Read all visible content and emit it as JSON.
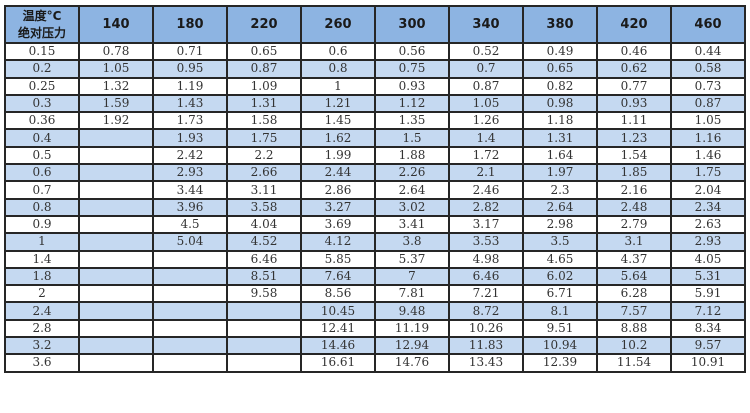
{
  "table": {
    "corner_top": "温度°C",
    "corner_bottom": "绝对压力",
    "temperatures": [
      "140",
      "180",
      "220",
      "260",
      "300",
      "340",
      "380",
      "420",
      "460"
    ],
    "colors": {
      "header": "#8db4e2",
      "alt_row": "#c5d9f1",
      "border": "#262626"
    },
    "rows": [
      {
        "pressure": "0.15",
        "values": [
          "0.78",
          "0.71",
          "0.65",
          "0.6",
          "0.56",
          "0.52",
          "0.49",
          "0.46",
          "0.44"
        ]
      },
      {
        "pressure": "0.2",
        "values": [
          "1.05",
          "0.95",
          "0.87",
          "0.8",
          "0.75",
          "0.7",
          "0.65",
          "0.62",
          "0.58"
        ]
      },
      {
        "pressure": "0.25",
        "values": [
          "1.32",
          "1.19",
          "1.09",
          "1",
          "0.93",
          "0.87",
          "0.82",
          "0.77",
          "0.73"
        ]
      },
      {
        "pressure": "0.3",
        "values": [
          "1.59",
          "1.43",
          "1.31",
          "1.21",
          "1.12",
          "1.05",
          "0.98",
          "0.93",
          "0.87"
        ]
      },
      {
        "pressure": "0.36",
        "values": [
          "1.92",
          "1.73",
          "1.58",
          "1.45",
          "1.35",
          "1.26",
          "1.18",
          "1.11",
          "1.05"
        ]
      },
      {
        "pressure": "0.4",
        "values": [
          "",
          "1.93",
          "1.75",
          "1.62",
          "1.5",
          "1.4",
          "1.31",
          "1.23",
          "1.16"
        ]
      },
      {
        "pressure": "0.5",
        "values": [
          "",
          "2.42",
          "2.2",
          "1.99",
          "1.88",
          "1.72",
          "1.64",
          "1.54",
          "1.46"
        ]
      },
      {
        "pressure": "0.6",
        "values": [
          "",
          "2.93",
          "2.66",
          "2.44",
          "2.26",
          "2.1",
          "1.97",
          "1.85",
          "1.75"
        ]
      },
      {
        "pressure": "0.7",
        "values": [
          "",
          "3.44",
          "3.11",
          "2.86",
          "2.64",
          "2.46",
          "2.3",
          "2.16",
          "2.04"
        ]
      },
      {
        "pressure": "0.8",
        "values": [
          "",
          "3.96",
          "3.58",
          "3.27",
          "3.02",
          "2.82",
          "2.64",
          "2.48",
          "2.34"
        ]
      },
      {
        "pressure": "0.9",
        "values": [
          "",
          "4.5",
          "4.04",
          "3.69",
          "3.41",
          "3.17",
          "2.98",
          "2.79",
          "2.63"
        ]
      },
      {
        "pressure": "1",
        "values": [
          "",
          "5.04",
          "4.52",
          "4.12",
          "3.8",
          "3.53",
          "3.5",
          "3.1",
          "2.93"
        ]
      },
      {
        "pressure": "1.4",
        "values": [
          "",
          "",
          "6.46",
          "5.85",
          "5.37",
          "4.98",
          "4.65",
          "4.37",
          "4.05"
        ]
      },
      {
        "pressure": "1.8",
        "values": [
          "",
          "",
          "8.51",
          "7.64",
          "7",
          "6.46",
          "6.02",
          "5.64",
          "5.31"
        ]
      },
      {
        "pressure": "2",
        "values": [
          "",
          "",
          "9.58",
          "8.56",
          "7.81",
          "7.21",
          "6.71",
          "6.28",
          "5.91"
        ]
      },
      {
        "pressure": "2.4",
        "values": [
          "",
          "",
          "",
          "10.45",
          "9.48",
          "8.72",
          "8.1",
          "7.57",
          "7.12"
        ]
      },
      {
        "pressure": "2.8",
        "values": [
          "",
          "",
          "",
          "12.41",
          "11.19",
          "10.26",
          "9.51",
          "8.88",
          "8.34"
        ]
      },
      {
        "pressure": "3.2",
        "values": [
          "",
          "",
          "",
          "14.46",
          "12.94",
          "11.83",
          "10.94",
          "10.2",
          "9.57"
        ]
      },
      {
        "pressure": "3.6",
        "values": [
          "",
          "",
          "",
          "16.61",
          "14.76",
          "13.43",
          "12.39",
          "11.54",
          "10.91"
        ]
      }
    ]
  }
}
